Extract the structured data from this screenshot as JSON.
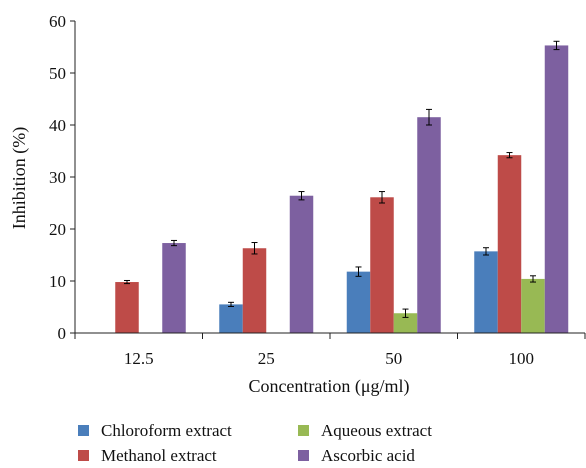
{
  "chart_data": {
    "type": "bar",
    "xlabel": "Concentration (μg/ml)",
    "ylabel": "Inhibition (%)",
    "ylim": [
      0,
      60
    ],
    "yticks": [
      0,
      10,
      20,
      30,
      40,
      50,
      60
    ],
    "categories": [
      "12.5",
      "25",
      "50",
      "100"
    ],
    "grid": false,
    "legend_position": "bottom",
    "series": [
      {
        "name": "Chloroform extract",
        "color": "#4a7ebb",
        "values": [
          0,
          5.5,
          11.8,
          15.7
        ],
        "errors": [
          0,
          0.4,
          0.9,
          0.7
        ]
      },
      {
        "name": "Methanol extract",
        "color": "#be4b48",
        "values": [
          9.8,
          16.3,
          26.1,
          34.2
        ],
        "errors": [
          0.3,
          1.1,
          1.1,
          0.5
        ]
      },
      {
        "name": "Aqueous extract",
        "color": "#98b954",
        "values": [
          0,
          0,
          3.8,
          10.4
        ],
        "errors": [
          0,
          0,
          0.8,
          0.6
        ]
      },
      {
        "name": "Ascorbic acid",
        "color": "#7d60a0",
        "values": [
          17.3,
          26.4,
          41.5,
          55.3
        ],
        "errors": [
          0.5,
          0.8,
          1.5,
          0.8
        ]
      }
    ]
  }
}
